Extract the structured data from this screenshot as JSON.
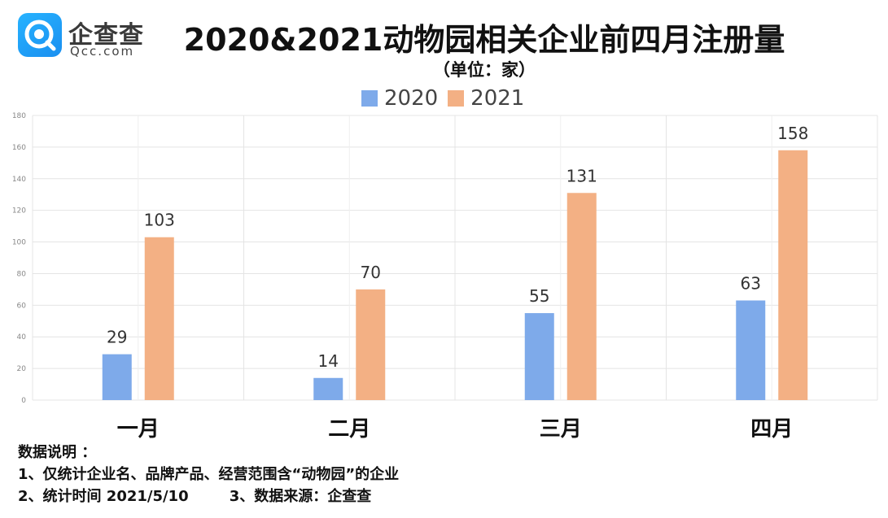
{
  "logo": {
    "text_cn": "企查查",
    "text_en": "Qcc.com"
  },
  "title": "2020&2021动物园相关企业前四月注册量",
  "subtitle": "（单位：家）",
  "notes": {
    "heading": "数据说明 ：",
    "line1": "1、仅统计企业名、品牌产品、经营范围含“动物园”的企业",
    "line2": "2、统计时间 2021/5/10",
    "line3": "3、数据来源：企查查"
  },
  "chart_data": {
    "type": "bar",
    "categories": [
      "一月",
      "二月",
      "三月",
      "四月"
    ],
    "series": [
      {
        "name": "2020",
        "color": "#7eaaea",
        "values": [
          29,
          14,
          55,
          63
        ]
      },
      {
        "name": "2021",
        "color": "#f3b084",
        "values": [
          103,
          70,
          131,
          158
        ]
      }
    ],
    "ylim": [
      0,
      180
    ],
    "yticks": [
      0,
      20,
      40,
      60,
      80,
      100,
      120,
      140,
      160,
      180
    ],
    "grid": true,
    "legend": "top-center",
    "data_labels": true
  }
}
